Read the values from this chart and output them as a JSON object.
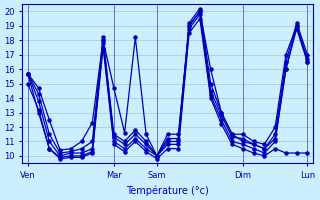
{
  "xlabel": "Température (°c)",
  "bg_color": "#cceeff",
  "line_color": "#0000bb",
  "grid_color": "#99cccc",
  "ylim": [
    9.5,
    20.5
  ],
  "yticks": [
    10,
    11,
    12,
    13,
    14,
    15,
    16,
    17,
    18,
    19,
    20
  ],
  "xtick_labels": [
    "Ven",
    "Mar",
    "Sam",
    "Dim",
    "Lun"
  ],
  "xtick_positions": [
    0,
    8,
    12,
    20,
    26
  ],
  "total_points": 27,
  "lines": [
    [
      15.7,
      14.7,
      12.5,
      10.4,
      10.5,
      11.0,
      12.3,
      18.0,
      14.7,
      11.6,
      18.2,
      11.5,
      10.0,
      11.5,
      11.5,
      19.0,
      20.0,
      16.0,
      13.0,
      11.5,
      11.5,
      11.0,
      10.8,
      12.0,
      17.0,
      19.0,
      16.7
    ],
    [
      15.7,
      14.3,
      11.5,
      10.2,
      10.3,
      10.5,
      11.0,
      18.2,
      11.5,
      11.0,
      11.8,
      11.0,
      10.0,
      11.2,
      11.2,
      19.2,
      20.2,
      15.0,
      13.0,
      11.5,
      11.0,
      10.8,
      10.5,
      11.5,
      16.5,
      19.2,
      17.0
    ],
    [
      15.7,
      13.8,
      11.0,
      10.0,
      10.2,
      10.2,
      10.5,
      18.0,
      11.3,
      10.8,
      11.5,
      10.8,
      10.0,
      11.0,
      11.0,
      19.0,
      20.0,
      14.5,
      12.8,
      11.3,
      11.2,
      10.8,
      10.5,
      11.2,
      16.0,
      19.0,
      16.5
    ],
    [
      15.0,
      13.2,
      10.5,
      9.9,
      10.0,
      10.0,
      10.3,
      17.8,
      11.0,
      10.5,
      11.2,
      10.5,
      10.0,
      10.8,
      10.8,
      18.8,
      19.8,
      14.2,
      12.5,
      11.0,
      10.8,
      10.5,
      10.2,
      11.0,
      16.0,
      18.8,
      16.5
    ],
    [
      15.7,
      13.0,
      10.5,
      9.8,
      9.9,
      9.9,
      10.2,
      17.5,
      10.8,
      10.3,
      11.0,
      10.3,
      9.8,
      10.5,
      10.5,
      18.5,
      19.5,
      14.0,
      12.2,
      10.8,
      10.5,
      10.2,
      10.0,
      10.5,
      10.2,
      10.2,
      10.2
    ]
  ],
  "vlines": [
    0,
    8,
    12,
    20,
    26
  ],
  "figsize": [
    3.2,
    2.0
  ],
  "dpi": 100
}
